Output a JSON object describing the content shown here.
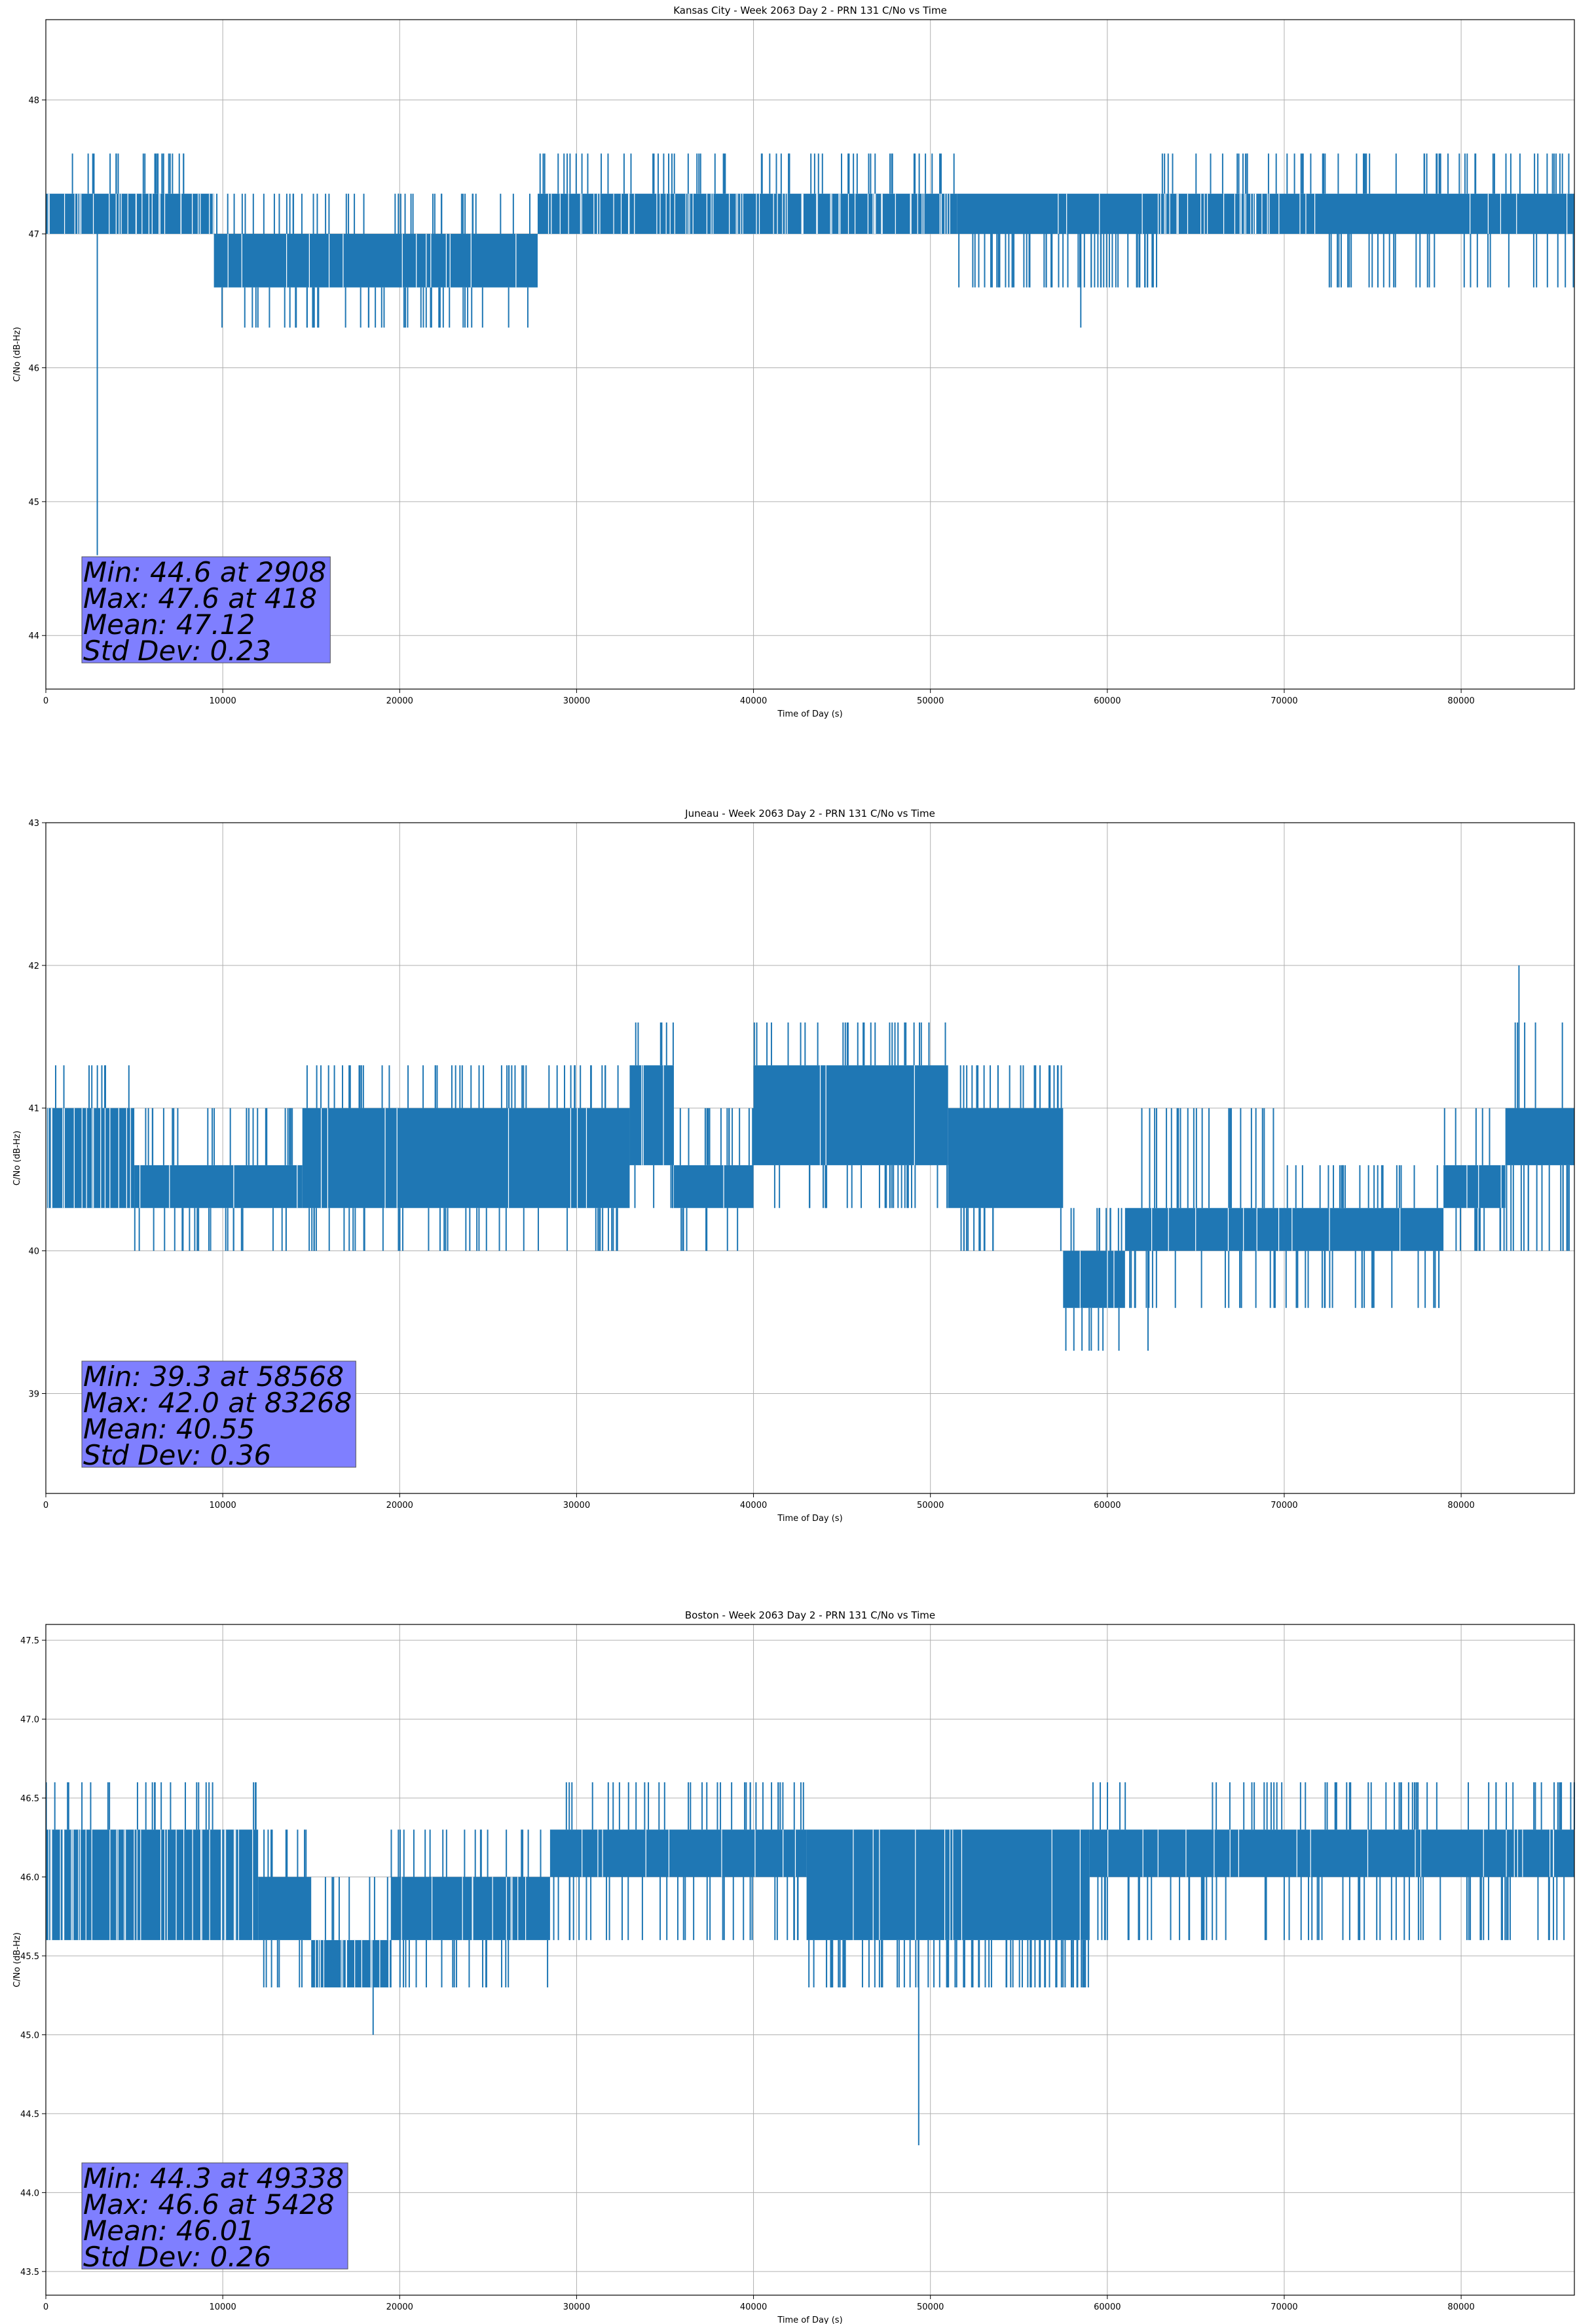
{
  "chart_data": [
    {
      "type": "line",
      "title": "Kansas City - Week 2063 Day 2 - PRN 131 C/No vs Time",
      "xlabel": "Time of Day (s)",
      "ylabel": "C/No (dB-Hz)",
      "xlim": [
        0,
        86400
      ],
      "ylim": [
        43.6,
        48.6
      ],
      "xticks": [
        0,
        10000,
        20000,
        30000,
        40000,
        50000,
        60000,
        70000,
        80000
      ],
      "xtick_labels": [
        "0",
        "10000",
        "20000",
        "30000",
        "40000",
        "50000",
        "60000",
        "70000",
        "80000"
      ],
      "yticks": [
        44,
        45,
        46,
        47,
        48
      ],
      "ytick_labels": [
        "44",
        "45",
        "46",
        "47",
        "48"
      ],
      "grid": true,
      "color": "#1f77b4",
      "stats": [
        "Min: 44.6 at 2908",
        "Max: 47.6 at 418",
        "Mean: 47.12",
        "Std Dev: 0.23"
      ],
      "segments": [
        {
          "x": [
            0,
            9500
          ],
          "low": 47.0,
          "high": 47.3,
          "spike_low": 47.0,
          "spike_high": 47.6
        },
        {
          "x": [
            9500,
            27800
          ],
          "low": 46.6,
          "high": 47.0,
          "spike_low": 46.3,
          "spike_high": 47.3
        },
        {
          "x": [
            27800,
            51500
          ],
          "low": 47.0,
          "high": 47.3,
          "spike_low": 47.0,
          "spike_high": 47.6
        },
        {
          "x": [
            51500,
            63000
          ],
          "low": 47.0,
          "high": 47.3,
          "spike_low": 46.6,
          "spike_high": 47.3
        },
        {
          "x": [
            63000,
            72000
          ],
          "low": 47.0,
          "high": 47.3,
          "spike_low": 47.0,
          "spike_high": 47.6
        },
        {
          "x": [
            72000,
            86400
          ],
          "low": 47.0,
          "high": 47.3,
          "spike_low": 46.6,
          "spike_high": 47.6
        }
      ],
      "extremes": [
        {
          "x": 2908,
          "y": 44.6
        },
        {
          "x": 21500,
          "y": 46.3
        },
        {
          "x": 58500,
          "y": 46.3
        }
      ]
    },
    {
      "type": "line",
      "title": "Juneau - Week 2063 Day 2 - PRN 131 C/No vs Time",
      "xlabel": "Time of Day (s)",
      "ylabel": "C/No (dB-Hz)",
      "xlim": [
        0,
        86400
      ],
      "ylim": [
        38.3,
        43.0
      ],
      "xticks": [
        0,
        10000,
        20000,
        30000,
        40000,
        50000,
        60000,
        70000,
        80000
      ],
      "xtick_labels": [
        "0",
        "10000",
        "20000",
        "30000",
        "40000",
        "50000",
        "60000",
        "70000",
        "80000"
      ],
      "yticks": [
        39,
        40,
        41,
        42,
        43
      ],
      "ytick_labels": [
        "39",
        "40",
        "41",
        "42",
        "43"
      ],
      "grid": true,
      "color": "#1f77b4",
      "stats": [
        "Min: 39.3 at 58568",
        "Max: 42.0 at 83268",
        "Mean: 40.55",
        "Std Dev: 0.36"
      ],
      "segments": [
        {
          "x": [
            0,
            5000
          ],
          "low": 40.3,
          "high": 41.0,
          "spike_low": 40.3,
          "spike_high": 41.3
        },
        {
          "x": [
            5000,
            14500
          ],
          "low": 40.3,
          "high": 40.6,
          "spike_low": 40.0,
          "spike_high": 41.0
        },
        {
          "x": [
            14500,
            33000
          ],
          "low": 40.3,
          "high": 41.0,
          "spike_low": 40.0,
          "spike_high": 41.3
        },
        {
          "x": [
            33000,
            35500
          ],
          "low": 40.6,
          "high": 41.3,
          "spike_low": 40.3,
          "spike_high": 41.6
        },
        {
          "x": [
            35500,
            40000
          ],
          "low": 40.3,
          "high": 40.6,
          "spike_low": 40.0,
          "spike_high": 41.0
        },
        {
          "x": [
            40000,
            51000
          ],
          "low": 40.6,
          "high": 41.3,
          "spike_low": 40.3,
          "spike_high": 41.6
        },
        {
          "x": [
            51000,
            57500
          ],
          "low": 40.3,
          "high": 41.0,
          "spike_low": 40.0,
          "spike_high": 41.3
        },
        {
          "x": [
            57500,
            61000
          ],
          "low": 39.6,
          "high": 40.0,
          "spike_low": 39.3,
          "spike_high": 40.3
        },
        {
          "x": [
            61000,
            70000
          ],
          "low": 40.0,
          "high": 40.3,
          "spike_low": 39.6,
          "spike_high": 41.0
        },
        {
          "x": [
            70000,
            79000
          ],
          "low": 40.0,
          "high": 40.3,
          "spike_low": 39.6,
          "spike_high": 40.6
        },
        {
          "x": [
            79000,
            82500
          ],
          "low": 40.3,
          "high": 40.6,
          "spike_low": 40.0,
          "spike_high": 41.0
        },
        {
          "x": [
            82500,
            86400
          ],
          "low": 40.6,
          "high": 41.0,
          "spike_low": 40.0,
          "spike_high": 41.6
        }
      ],
      "extremes": [
        {
          "x": 83268,
          "y": 42.0
        },
        {
          "x": 58568,
          "y": 39.3
        },
        {
          "x": 59500,
          "y": 39.3
        },
        {
          "x": 62300,
          "y": 39.3
        }
      ]
    },
    {
      "type": "line",
      "title": "Boston - Week 2063 Day 2 - PRN 131 C/No vs Time",
      "xlabel": "Time of Day (s)",
      "ylabel": "C/No (dB-Hz)",
      "xlim": [
        0,
        86400
      ],
      "ylim": [
        43.35,
        47.6
      ],
      "xticks": [
        0,
        10000,
        20000,
        30000,
        40000,
        50000,
        60000,
        70000,
        80000
      ],
      "xtick_labels": [
        "0",
        "10000",
        "20000",
        "30000",
        "40000",
        "50000",
        "60000",
        "70000",
        "80000"
      ],
      "yticks": [
        43.5,
        44.0,
        44.5,
        45.0,
        45.5,
        46.0,
        46.5,
        47.0,
        47.5
      ],
      "ytick_labels": [
        "43.5",
        "44.0",
        "44.5",
        "45.0",
        "45.5",
        "46.0",
        "46.5",
        "47.0",
        "47.5"
      ],
      "grid": true,
      "color": "#1f77b4",
      "stats": [
        "Min: 44.3 at 49338",
        "Max: 46.6 at 5428",
        "Mean: 46.01",
        "Std Dev: 0.26"
      ],
      "segments": [
        {
          "x": [
            0,
            12000
          ],
          "low": 45.6,
          "high": 46.3,
          "spike_low": 45.6,
          "spike_high": 46.6
        },
        {
          "x": [
            12000,
            15000
          ],
          "low": 45.6,
          "high": 46.0,
          "spike_low": 45.3,
          "spike_high": 46.3
        },
        {
          "x": [
            15000,
            19500
          ],
          "low": 45.3,
          "high": 45.6,
          "spike_low": 45.3,
          "spike_high": 46.0
        },
        {
          "x": [
            19500,
            28500
          ],
          "low": 45.6,
          "high": 46.0,
          "spike_low": 45.3,
          "spike_high": 46.3
        },
        {
          "x": [
            28500,
            43000
          ],
          "low": 46.0,
          "high": 46.3,
          "spike_low": 45.6,
          "spike_high": 46.6
        },
        {
          "x": [
            43000,
            59000
          ],
          "low": 45.6,
          "high": 46.3,
          "spike_low": 45.3,
          "spike_high": 46.3
        },
        {
          "x": [
            59000,
            86400
          ],
          "low": 46.0,
          "high": 46.3,
          "spike_low": 45.6,
          "spike_high": 46.6
        }
      ],
      "extremes": [
        {
          "x": 49338,
          "y": 44.3
        },
        {
          "x": 18500,
          "y": 45.0
        }
      ]
    }
  ]
}
